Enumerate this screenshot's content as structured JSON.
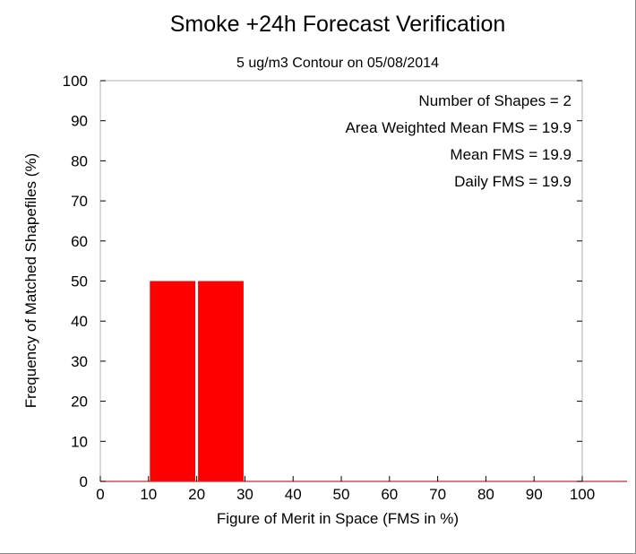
{
  "chart_data": {
    "type": "bar",
    "title": "Smoke +24h Forecast Verification",
    "subtitle": "5 ug/m3 Contour on 05/08/2014",
    "xlabel": "Figure of Merit in Space (FMS in %)",
    "ylabel": "Frequency of Matched Shapefiles (%)",
    "xlim": [
      0,
      100
    ],
    "ylim": [
      0,
      100
    ],
    "x_ticks": [
      "0",
      "10",
      "20",
      "30",
      "40",
      "50",
      "60",
      "70",
      "80",
      "90",
      "100"
    ],
    "y_ticks": [
      "0",
      "10",
      "20",
      "30",
      "40",
      "50",
      "60",
      "70",
      "80",
      "90",
      "100"
    ],
    "bins": [
      {
        "x_start": 10,
        "x_end": 20,
        "value": 50
      },
      {
        "x_start": 20,
        "x_end": 30,
        "value": 50
      }
    ],
    "bar_color": "#ff0000",
    "baseline_color": "#cc2a2a",
    "annotations": [
      "Number of Shapes = 2",
      "Area Weighted Mean FMS = 19.9",
      "Mean FMS = 19.9",
      "Daily FMS = 19.9"
    ],
    "grid": false
  }
}
